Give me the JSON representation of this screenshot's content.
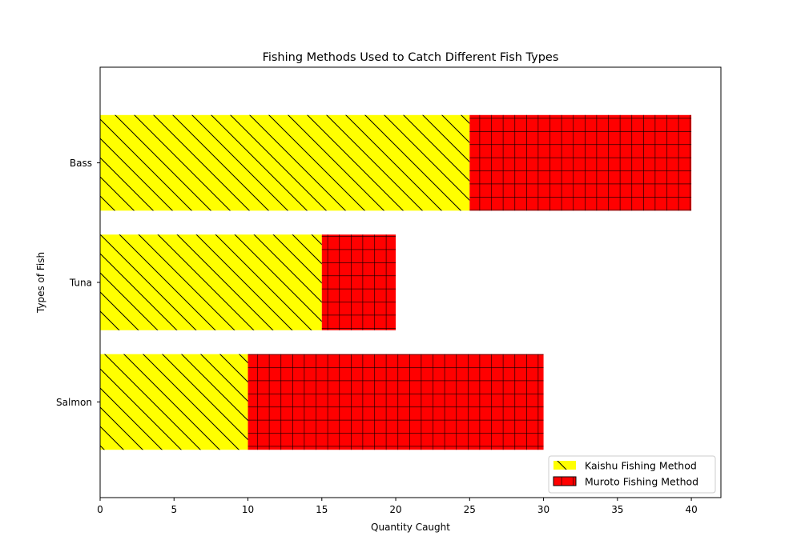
{
  "chart_data": {
    "type": "bar",
    "orientation": "horizontal",
    "stacked": true,
    "title": "Fishing Methods Used to Catch Different Fish Types",
    "xlabel": "Quantity Caught",
    "ylabel": "Types of Fish",
    "categories": [
      "Salmon",
      "Tuna",
      "Bass"
    ],
    "xlim": [
      0,
      42
    ],
    "xticks": [
      0,
      5,
      10,
      15,
      20,
      25,
      30,
      35,
      40
    ],
    "grid": false,
    "legend_position": "lower-right",
    "series": [
      {
        "name": "Kaishu Fishing Method",
        "values": [
          10,
          15,
          25
        ],
        "color": "#ffff00",
        "hatch": "diagonal"
      },
      {
        "name": "Muroto Fishing Method",
        "values": [
          20,
          5,
          15
        ],
        "color": "#ff0000",
        "hatch": "grid"
      }
    ]
  }
}
